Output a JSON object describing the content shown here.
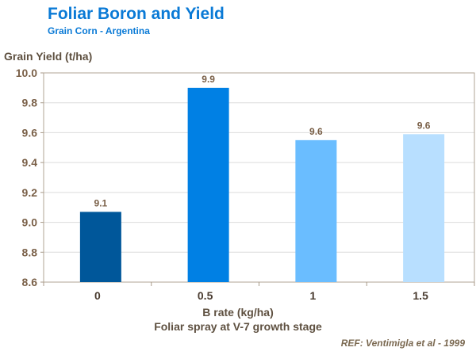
{
  "chart_data": {
    "type": "bar",
    "title": "Foliar Boron and Yield",
    "subtitle": "Grain Corn - Argentina",
    "ylabel": "Grain Yield (t/ha)",
    "xlabel": "B rate (kg/ha)",
    "xlabel2": "Foliar spray at V-7 growth stage",
    "categories": [
      "0",
      "0.5",
      "1",
      "1.5"
    ],
    "values": [
      9.07,
      9.9,
      9.55,
      9.59
    ],
    "data_labels": [
      "9.1",
      "9.9",
      "9.6",
      "9.6"
    ],
    "bar_colors": [
      "#00579a",
      "#0080e4",
      "#6abdff",
      "#b8dfff"
    ],
    "ylim": [
      8.6,
      10.0
    ],
    "yticks": [
      "8.6",
      "8.8",
      "9.0",
      "9.2",
      "9.4",
      "9.6",
      "9.8",
      "10.0"
    ],
    "grid": true,
    "legend": "none"
  },
  "reference": "REF: Ventimigla et al - 1999"
}
